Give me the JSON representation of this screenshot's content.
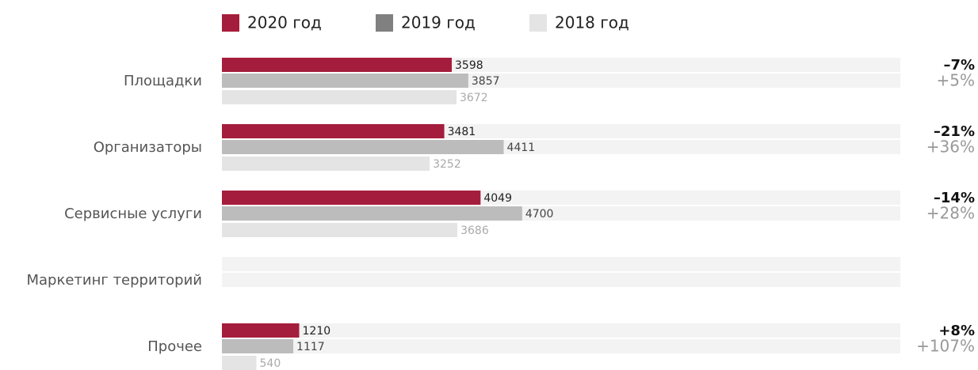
{
  "chart_data": {
    "type": "bar",
    "orientation": "horizontal",
    "categories": [
      "Площадки",
      "Организаторы",
      "Сервисные услуги",
      "Маркетинг территорий",
      "Прочее"
    ],
    "series": [
      {
        "name": "2020 год",
        "color": "#a51d3c",
        "legend_color": "#a51d3c",
        "label_color": "#222222",
        "values": [
          3598,
          3481,
          4049,
          null,
          1210
        ]
      },
      {
        "name": "2019 год",
        "color": "#bcbcbc",
        "legend_color": "#808080",
        "label_color": "#444444",
        "values": [
          3857,
          4411,
          4700,
          null,
          1117
        ]
      },
      {
        "name": "2018 год",
        "color": "#e4e4e4",
        "legend_color": "#e4e4e4",
        "label_color": "#aaaaaa",
        "values": [
          3672,
          3252,
          3686,
          null,
          540
        ]
      }
    ],
    "change_2020": [
      "–7%",
      "–21%",
      "–14%",
      null,
      "+8%"
    ],
    "change_2019": [
      "+5%",
      "+36%",
      "+28%",
      null,
      "+107%"
    ],
    "xlim": [
      0,
      10620
    ],
    "track_color": "#f3f3f3"
  }
}
